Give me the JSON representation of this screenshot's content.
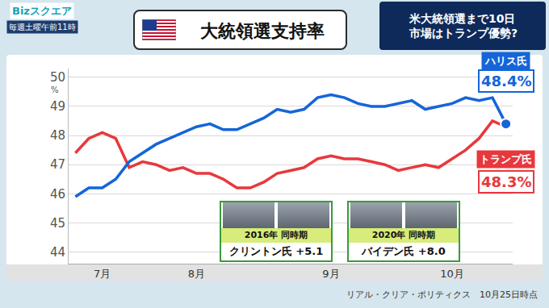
{
  "chart_data": {
    "type": "line",
    "title": "大統領選支持率",
    "subtitle": [
      "米大統領選まで10日",
      "市場はトランプ優勢?"
    ],
    "annotations": [
      "Bizスクエア",
      "毎週土曜午前11時"
    ],
    "ylabel": "%",
    "source": "リアル・クリア・ポリティクス　10月25日時点",
    "categories": [
      null,
      null,
      "7月",
      null,
      null,
      null,
      null,
      null,
      null,
      "8月",
      null,
      null,
      null,
      null,
      null,
      null,
      null,
      null,
      null,
      "9月",
      null,
      null,
      null,
      null,
      null,
      null,
      null,
      null,
      "10月",
      null,
      null,
      null,
      null
    ],
    "series": [
      {
        "name": "ハリス氏",
        "color": "#1565d8",
        "end_label": "48.4%",
        "marker": "circle",
        "values": [
          45.9,
          46.2,
          46.2,
          46.5,
          47.1,
          47.4,
          47.7,
          47.9,
          48.1,
          48.3,
          48.4,
          48.2,
          48.2,
          48.4,
          48.6,
          48.9,
          48.8,
          48.9,
          49.3,
          49.4,
          49.3,
          49.1,
          49.0,
          49.0,
          49.1,
          49.2,
          48.9,
          49.0,
          49.1,
          49.3,
          49.2,
          49.3,
          48.4
        ]
      },
      {
        "name": "トランプ氏",
        "color": "#e8383d",
        "end_label": "48.3%",
        "values": [
          47.4,
          47.9,
          48.1,
          47.9,
          46.9,
          47.1,
          47.0,
          46.8,
          46.9,
          46.7,
          46.7,
          46.5,
          46.2,
          46.2,
          46.4,
          46.7,
          46.8,
          46.9,
          47.2,
          47.3,
          47.2,
          47.2,
          47.1,
          47.0,
          46.8,
          46.9,
          47.0,
          46.9,
          47.2,
          47.5,
          47.9,
          48.5,
          48.3
        ]
      }
    ],
    "comparisons": [
      {
        "title": "2016年 同時期",
        "text": "クリントン氏 +5.1"
      },
      {
        "title": "2020年 同時期",
        "text": "バイデン氏 +8.0"
      }
    ],
    "ylim": [
      43.6,
      50.3
    ],
    "yticks": [
      44,
      45,
      46,
      47,
      48,
      49,
      50
    ],
    "grid": true
  }
}
